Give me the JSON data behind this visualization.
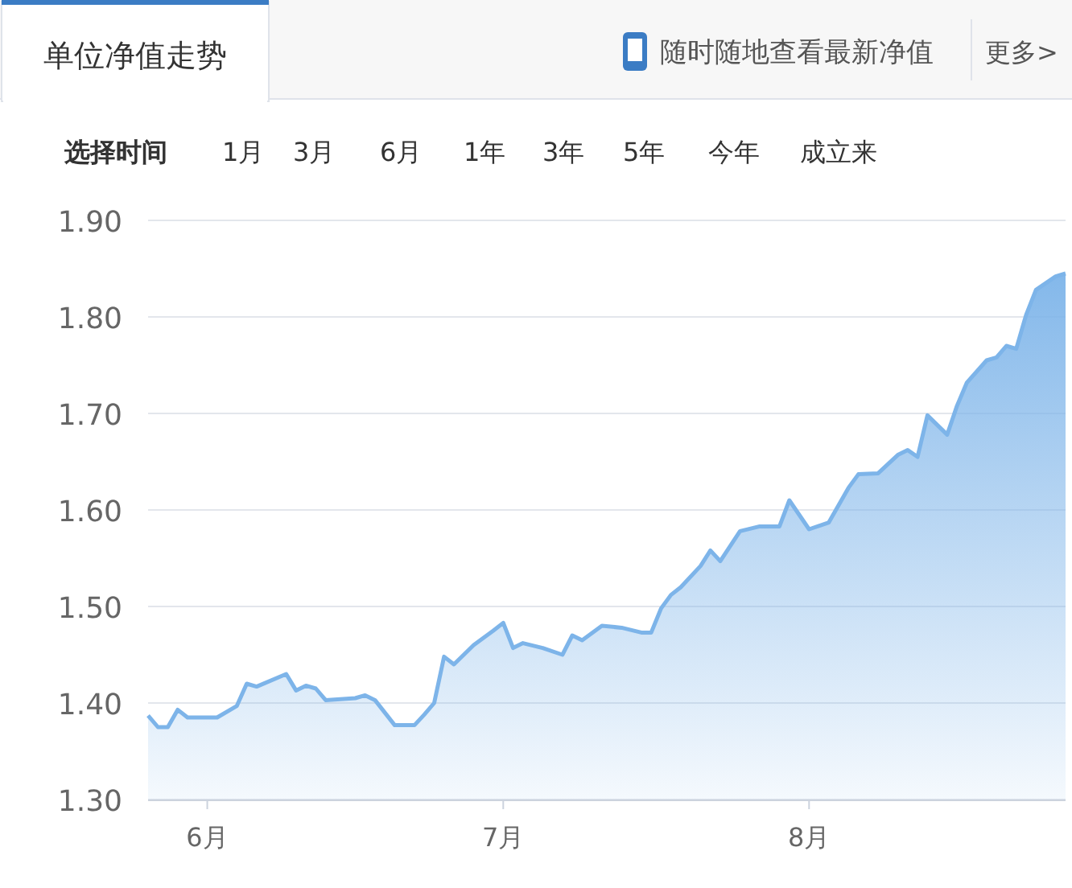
{
  "chart_data": {
    "type": "area",
    "title": "单位净值走势",
    "annotations": [
      "随时随地查看最新净值",
      "更多>",
      "选择时间",
      "1月",
      "3月",
      "6月",
      "1年",
      "3年",
      "5年",
      "今年",
      "成立来"
    ],
    "x": [
      "--05-26",
      "--05-27",
      "--05-28",
      "--05-29",
      "--05-30",
      "--06-02",
      "--06-04",
      "--06-05",
      "--06-06",
      "--06-09",
      "--06-10",
      "--06-11",
      "--06-12",
      "--06-13",
      "--06-16",
      "--06-17",
      "--06-18",
      "--06-20",
      "--06-22",
      "--06-23",
      "--06-24",
      "--06-25",
      "--06-26",
      "--06-28",
      "--06-30",
      "--07-01",
      "--07-02",
      "--07-03",
      "--07-05",
      "--07-07",
      "--07-08",
      "--07-09",
      "--07-11",
      "--07-13",
      "--07-15",
      "--07-16",
      "--07-17",
      "--07-18",
      "--07-19",
      "--07-21",
      "--07-22",
      "--07-23",
      "--07-25",
      "--07-27",
      "--07-29",
      "--07-30",
      "--07-31",
      "--08-01",
      "--08-03",
      "--08-04",
      "--08-05",
      "--08-06",
      "--08-08",
      "--08-10",
      "--08-11",
      "--08-12",
      "--08-13",
      "--08-15",
      "--08-16",
      "--08-17",
      "--08-19",
      "--08-20",
      "--08-21",
      "--08-22",
      "--08-23",
      "--08-24",
      "--08-26",
      "--08-27"
    ],
    "series": [
      {
        "color": "#7db4e9",
        "values": [
          1.387,
          1.375,
          1.375,
          1.393,
          1.385,
          1.385,
          1.397,
          1.42,
          1.417,
          1.43,
          1.413,
          1.418,
          1.415,
          1.403,
          1.405,
          1.408,
          1.403,
          1.377,
          1.377,
          1.388,
          1.4,
          1.448,
          1.44,
          1.46,
          1.475,
          1.483,
          1.457,
          1.462,
          1.457,
          1.45,
          1.47,
          1.465,
          1.48,
          1.478,
          1.473,
          1.473,
          1.498,
          1.512,
          1.52,
          1.542,
          1.558,
          1.547,
          1.578,
          1.583,
          1.583,
          1.61,
          1.595,
          1.58,
          1.587,
          1.605,
          1.623,
          1.637,
          1.638,
          1.657,
          1.662,
          1.655,
          1.698,
          1.678,
          1.708,
          1.732,
          1.755,
          1.758,
          1.77,
          1.767,
          1.802,
          1.828,
          1.842,
          1.845
        ]
      }
    ],
    "xlim": [
      "--05-26",
      "--08-27"
    ],
    "xticks": [
      {
        "value": "--06-01",
        "label": "6月"
      },
      {
        "value": "--07-01",
        "label": "7月"
      },
      {
        "value": "--08-01",
        "label": "8月"
      }
    ],
    "ylim": [
      1.3,
      1.9
    ],
    "yticks": [
      {
        "value": 1.3,
        "label": "1.30"
      },
      {
        "value": 1.4,
        "label": "1.40"
      },
      {
        "value": 1.5,
        "label": "1.50"
      },
      {
        "value": 1.6,
        "label": "1.60"
      },
      {
        "value": 1.7,
        "label": "1.70"
      },
      {
        "value": 1.8,
        "label": "1.80"
      },
      {
        "value": 1.9,
        "label": "1.90"
      }
    ],
    "grid": "y"
  }
}
